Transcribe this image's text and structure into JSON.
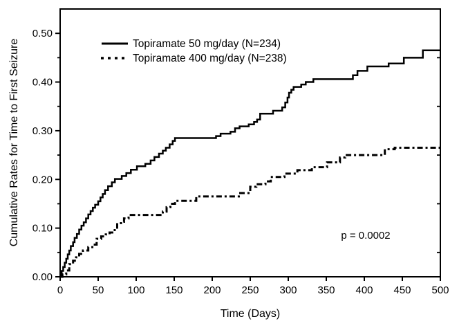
{
  "chart_data": {
    "type": "line",
    "subtype": "kaplan-meier-step",
    "title": "",
    "xlabel": "Time (Days)",
    "ylabel": "Cumulative Rates for Time to First Seizure",
    "xlim": [
      0,
      500
    ],
    "ylim": [
      0,
      0.55
    ],
    "xticks": [
      0,
      50,
      100,
      150,
      200,
      250,
      300,
      350,
      400,
      450,
      500
    ],
    "yticks_major": [
      0.0,
      0.1,
      0.2,
      0.3,
      0.4,
      0.5
    ],
    "yticks_minor": [
      0.05,
      0.15,
      0.25,
      0.35,
      0.45
    ],
    "right_spine_ticks": [
      0.05,
      0.15,
      0.25,
      0.35,
      0.45
    ],
    "grid": false,
    "frame": true,
    "legend_position": "upper-left-inside",
    "annotation": {
      "text": "p = 0.0002",
      "x": 402,
      "y": 0.085
    },
    "series": [
      {
        "name": "Topiramate 50 mg/day (N=234)",
        "style": "solid",
        "color": "#000000",
        "points": [
          [
            0,
            0
          ],
          [
            2,
            0.012
          ],
          [
            4,
            0.02
          ],
          [
            6,
            0.029
          ],
          [
            8,
            0.037
          ],
          [
            10,
            0.046
          ],
          [
            12,
            0.054
          ],
          [
            14,
            0.063
          ],
          [
            17,
            0.071
          ],
          [
            19,
            0.08
          ],
          [
            22,
            0.088
          ],
          [
            25,
            0.097
          ],
          [
            28,
            0.105
          ],
          [
            31,
            0.112
          ],
          [
            34,
            0.12
          ],
          [
            37,
            0.128
          ],
          [
            40,
            0.135
          ],
          [
            43,
            0.142
          ],
          [
            46,
            0.148
          ],
          [
            50,
            0.155
          ],
          [
            53,
            0.163
          ],
          [
            56,
            0.17
          ],
          [
            59,
            0.178
          ],
          [
            63,
            0.186
          ],
          [
            68,
            0.194
          ],
          [
            72,
            0.201
          ],
          [
            81,
            0.207
          ],
          [
            87,
            0.213
          ],
          [
            93,
            0.22
          ],
          [
            101,
            0.227
          ],
          [
            112,
            0.232
          ],
          [
            119,
            0.239
          ],
          [
            124,
            0.246
          ],
          [
            130,
            0.253
          ],
          [
            135,
            0.259
          ],
          [
            139,
            0.265
          ],
          [
            144,
            0.272
          ],
          [
            148,
            0.279
          ],
          [
            151,
            0.285
          ],
          [
            205,
            0.289
          ],
          [
            211,
            0.294
          ],
          [
            224,
            0.298
          ],
          [
            230,
            0.305
          ],
          [
            236,
            0.309
          ],
          [
            248,
            0.313
          ],
          [
            255,
            0.318
          ],
          [
            259,
            0.323
          ],
          [
            263,
            0.335
          ],
          [
            280,
            0.341
          ],
          [
            292,
            0.348
          ],
          [
            296,
            0.358
          ],
          [
            299,
            0.368
          ],
          [
            301,
            0.378
          ],
          [
            304,
            0.384
          ],
          [
            307,
            0.39
          ],
          [
            317,
            0.395
          ],
          [
            323,
            0.4
          ],
          [
            333,
            0.406
          ],
          [
            385,
            0.414
          ],
          [
            391,
            0.423
          ],
          [
            404,
            0.432
          ],
          [
            432,
            0.438
          ],
          [
            452,
            0.45
          ],
          [
            477,
            0.465
          ],
          [
            500,
            0.465
          ]
        ]
      },
      {
        "name": "Topiramate 400 mg/day (N=238)",
        "style": "dashed",
        "color": "#000000",
        "points": [
          [
            0,
            0
          ],
          [
            3,
            0.005
          ],
          [
            8,
            0.013
          ],
          [
            12,
            0.026
          ],
          [
            17,
            0.033
          ],
          [
            21,
            0.04
          ],
          [
            25,
            0.047
          ],
          [
            30,
            0.054
          ],
          [
            37,
            0.061
          ],
          [
            44,
            0.066
          ],
          [
            48,
            0.078
          ],
          [
            54,
            0.083
          ],
          [
            60,
            0.087
          ],
          [
            65,
            0.091
          ],
          [
            70,
            0.096
          ],
          [
            75,
            0.108
          ],
          [
            80,
            0.113
          ],
          [
            84,
            0.12
          ],
          [
            90,
            0.127
          ],
          [
            135,
            0.134
          ],
          [
            140,
            0.143
          ],
          [
            145,
            0.15
          ],
          [
            151,
            0.156
          ],
          [
            179,
            0.165
          ],
          [
            235,
            0.172
          ],
          [
            250,
            0.185
          ],
          [
            258,
            0.19
          ],
          [
            270,
            0.196
          ],
          [
            277,
            0.205
          ],
          [
            295,
            0.212
          ],
          [
            312,
            0.219
          ],
          [
            331,
            0.225
          ],
          [
            351,
            0.235
          ],
          [
            368,
            0.245
          ],
          [
            375,
            0.25
          ],
          [
            427,
            0.262
          ],
          [
            440,
            0.265
          ],
          [
            500,
            0.265
          ]
        ]
      }
    ]
  },
  "colors": {
    "line": "#000000",
    "background": "#ffffff",
    "text": "#000000"
  }
}
